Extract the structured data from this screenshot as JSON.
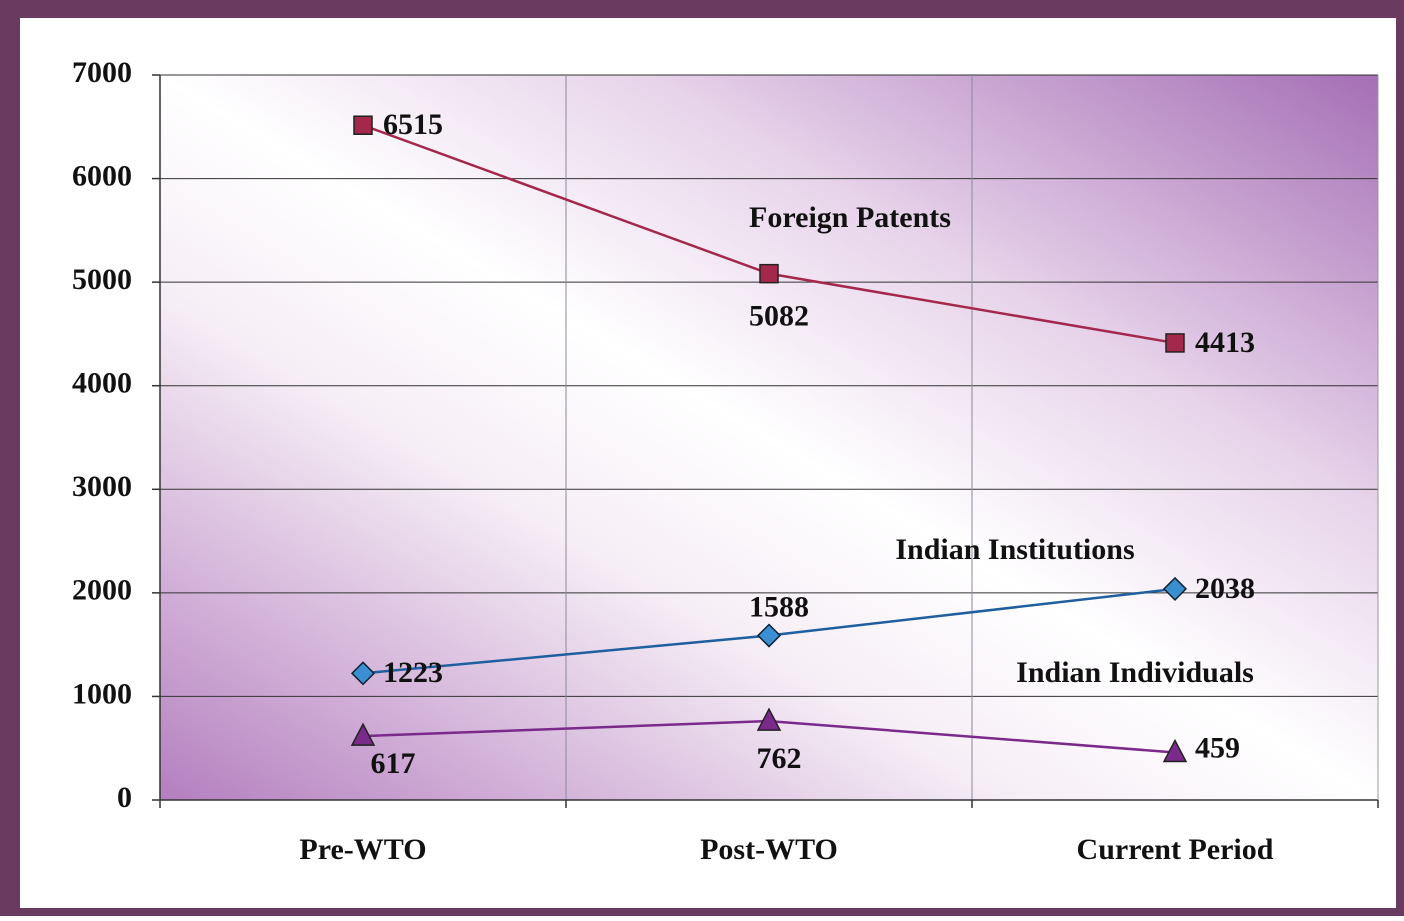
{
  "chart_data": {
    "type": "line",
    "categories": [
      "Pre-WTO",
      "Post-WTO",
      "Current Period"
    ],
    "series": [
      {
        "name": "Foreign Patents",
        "color": "#a3284c",
        "marker": "square",
        "values": [
          6515,
          5082,
          4413
        ]
      },
      {
        "name": "Indian Institutions",
        "color": "#1f5f9f",
        "marker": "diamond",
        "values": [
          1223,
          1588,
          2038
        ]
      },
      {
        "name": "Indian Individuals",
        "color": "#7a2a8a",
        "marker": "triangle",
        "values": [
          617,
          762,
          459
        ]
      }
    ],
    "ylim": [
      0,
      7000
    ],
    "yticks": [
      0,
      1000,
      2000,
      3000,
      4000,
      5000,
      6000,
      7000
    ],
    "grid": true
  }
}
